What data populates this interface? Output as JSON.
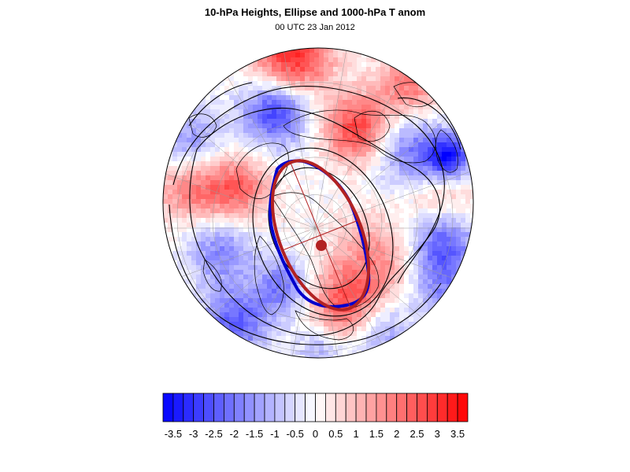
{
  "title": "10-hPa Heights, Ellipse and 1000-hPa T anom",
  "subtitle": "00 UTC 23 Jan 2012",
  "colors": {
    "negative_max": "#0000ff",
    "positive_max": "#ff0000",
    "neutral": "#ffffff",
    "ellipse": "#b22222",
    "vortex_edge": "#0000cc",
    "height_contour": "#000000",
    "coastline": "#000000",
    "graticule": "#999999"
  },
  "colorbar": {
    "levels": [
      -3.75,
      -3.5,
      -3.25,
      -3,
      -2.75,
      -2.5,
      -2.25,
      -2,
      -1.75,
      -1.5,
      -1.25,
      -1,
      -0.75,
      -0.5,
      -0.25,
      0,
      0.25,
      0.5,
      0.75,
      1,
      1.25,
      1.5,
      1.75,
      2,
      2.25,
      2.5,
      2.75,
      3,
      3.25,
      3.5,
      3.75
    ],
    "labels": [
      "-3.5",
      "-3",
      "-2.5",
      "-2",
      "-1.5",
      "-1",
      "-0.5",
      "0",
      "0.5",
      "1",
      "1.5",
      "2",
      "2.5",
      "3",
      "3.5"
    ],
    "label_values": [
      -3.5,
      -3,
      -2.5,
      -2,
      -1.5,
      -1,
      -0.5,
      0,
      0.5,
      1,
      1.5,
      2,
      2.5,
      3,
      3.5
    ]
  },
  "map": {
    "projection": "orthographic",
    "graticule": true
  }
}
